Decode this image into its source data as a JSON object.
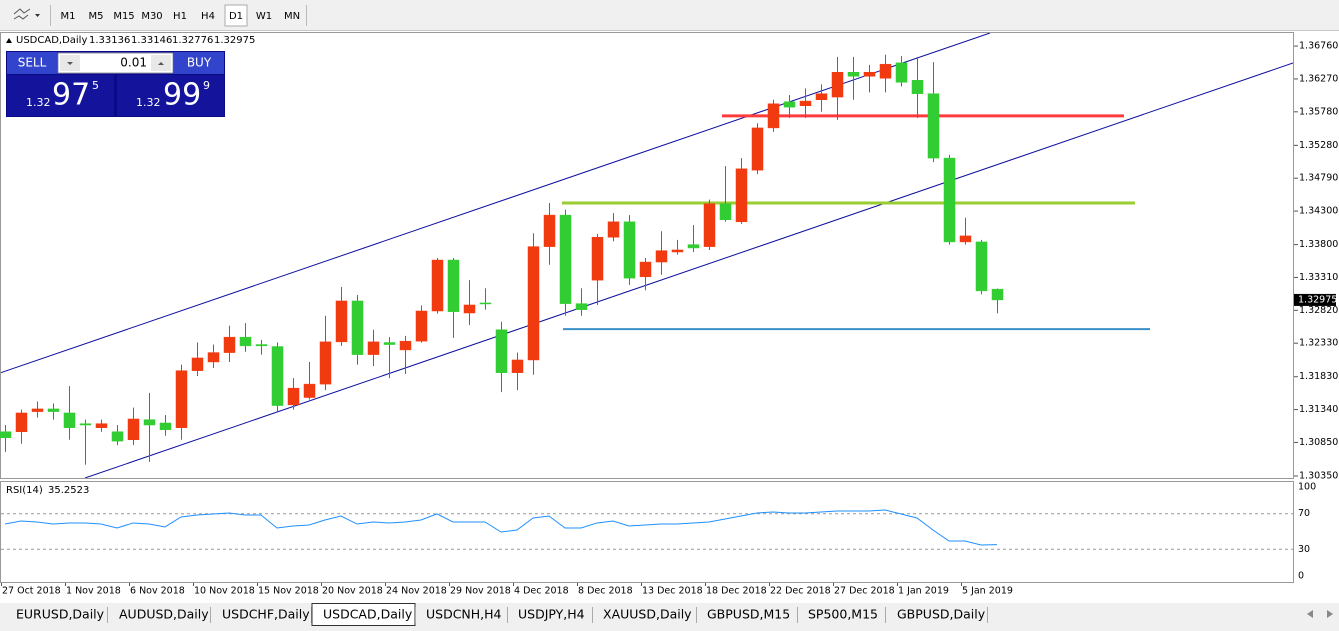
{
  "toolbar": {
    "timeframes": [
      "M1",
      "M5",
      "M15",
      "M30",
      "H1",
      "H4",
      "D1",
      "W1",
      "MN"
    ],
    "active": "D1"
  },
  "trade_panel": {
    "sell": "SELL",
    "buy": "BUY",
    "lot": 0.01,
    "bid": {
      "prefix": "1.32",
      "big": "97",
      "small": "5"
    },
    "ask": {
      "prefix": "1.32",
      "big": "99",
      "small": "9"
    }
  },
  "tabs": {
    "items": [
      "EURUSD,Daily",
      "AUDUSD,Daily",
      "USDCHF,Daily",
      "USDCAD,Daily",
      "USDCNH,H4",
      "USDJPY,H4",
      "XAUUSD,Daily",
      "GBPUSD,M15",
      "SP500,M15",
      "GBPUSD,Daily"
    ],
    "active": "USDCAD,Daily"
  },
  "chart_data": [
    {
      "type": "candlestick",
      "title": "USDCAD,Daily",
      "categories": [
        "27 Oct 2018",
        null,
        null,
        null,
        "1 Nov 2018",
        null,
        null,
        null,
        "6 Nov 2018",
        null,
        null,
        null,
        "10 Nov 2018",
        null,
        null,
        null,
        "15 Nov 2018",
        null,
        null,
        null,
        "20 Nov 2018",
        null,
        null,
        null,
        "24 Nov 2018",
        null,
        null,
        null,
        "29 Nov 2018",
        null,
        null,
        null,
        "4 Dec 2018",
        null,
        null,
        null,
        "8 Dec 2018",
        null,
        null,
        null,
        "13 Dec 2018",
        null,
        null,
        null,
        "18 Dec 2018",
        null,
        null,
        null,
        "22 Dec 2018",
        null,
        null,
        null,
        "27 Dec 2018",
        null,
        null,
        null,
        "1 Jan 2019",
        null,
        null,
        null,
        "5 Jan 2019",
        null,
        null
      ],
      "open": [
        1.3101,
        1.3101,
        1.3131,
        1.3135,
        1.3129,
        1.3113,
        1.3107,
        1.3101,
        1.3089,
        1.3119,
        1.3114,
        1.3107,
        1.3192,
        1.3205,
        1.3219,
        1.3242,
        1.3231,
        1.3228,
        1.3141,
        1.3152,
        1.3172,
        1.3235,
        1.3296,
        1.3216,
        1.3234,
        1.3223,
        1.3236,
        1.3281,
        1.3357,
        1.3278,
        1.3293,
        1.3253,
        1.3189,
        1.3208,
        1.3377,
        1.3424,
        1.3292,
        1.3327,
        1.3391,
        1.3414,
        1.3332,
        1.3354,
        1.3369,
        1.338,
        1.3377,
        1.3441,
        1.3414,
        1.3491,
        1.3554,
        1.3593,
        1.3587,
        1.3596,
        1.36,
        1.3637,
        1.3631,
        1.3628,
        1.3651,
        1.3625,
        1.3605,
        1.3509,
        1.3384,
        1.3384,
        1.33136
      ],
      "high": [
        1.3111,
        1.3134,
        1.3146,
        1.3143,
        1.3169,
        1.3119,
        1.3119,
        1.3111,
        1.3137,
        1.3159,
        1.3126,
        1.3201,
        1.3234,
        1.3231,
        1.3259,
        1.3263,
        1.3238,
        1.3234,
        1.3181,
        1.3205,
        1.3274,
        1.3317,
        1.3305,
        1.3253,
        1.3242,
        1.3244,
        1.3289,
        1.336,
        1.336,
        1.3327,
        1.3315,
        1.3265,
        1.3219,
        1.3397,
        1.3442,
        1.3432,
        1.3315,
        1.3396,
        1.3427,
        1.3424,
        1.336,
        1.34,
        1.3387,
        1.3409,
        1.3447,
        1.3497,
        1.3509,
        1.3561,
        1.3596,
        1.3603,
        1.3613,
        1.3619,
        1.366,
        1.366,
        1.3648,
        1.3663,
        1.3661,
        1.366,
        1.3652,
        1.3514,
        1.342,
        1.3387,
        1.33146
      ],
      "low": [
        1.3071,
        1.3083,
        1.3122,
        1.3119,
        1.3089,
        1.3052,
        1.3101,
        1.3081,
        1.3081,
        1.3056,
        1.3095,
        1.3089,
        1.3184,
        1.3196,
        1.3205,
        1.322,
        1.3216,
        1.3131,
        1.3134,
        1.3149,
        1.3163,
        1.3229,
        1.3201,
        1.3199,
        1.3181,
        1.3187,
        1.3234,
        1.3277,
        1.3241,
        1.326,
        1.3283,
        1.316,
        1.3163,
        1.3186,
        1.335,
        1.3274,
        1.3274,
        1.329,
        1.3385,
        1.332,
        1.3312,
        1.3335,
        1.3365,
        1.3369,
        1.3372,
        1.3414,
        1.3411,
        1.3485,
        1.3548,
        1.3569,
        1.3569,
        1.3578,
        1.3566,
        1.3596,
        1.3607,
        1.3607,
        1.3616,
        1.3569,
        1.3503,
        1.338,
        1.338,
        1.3306,
        1.32776
      ],
      "close": [
        1.3092,
        1.3129,
        1.3135,
        1.3131,
        1.3107,
        1.3111,
        1.3113,
        1.3087,
        1.312,
        1.3111,
        1.3104,
        1.3192,
        1.3211,
        1.3219,
        1.3242,
        1.3229,
        1.3229,
        1.314,
        1.3166,
        1.3172,
        1.3235,
        1.3296,
        1.3216,
        1.3235,
        1.3231,
        1.3236,
        1.3281,
        1.3357,
        1.328,
        1.329,
        1.3292,
        1.3189,
        1.3208,
        1.3377,
        1.3424,
        1.3292,
        1.3283,
        1.3391,
        1.3414,
        1.333,
        1.3354,
        1.3371,
        1.3372,
        1.3375,
        1.3441,
        1.3417,
        1.3493,
        1.3554,
        1.359,
        1.3585,
        1.3594,
        1.3605,
        1.3637,
        1.3631,
        1.3637,
        1.3649,
        1.3622,
        1.3605,
        1.3509,
        1.3384,
        1.3393,
        1.3311,
        1.32975
      ],
      "up_color": "#f23a10",
      "down_color": "#32cd32",
      "ylim": [
        1.3032,
        1.3697
      ],
      "yticks": [
        {
          "value": 1.3676,
          "label": "1.36760"
        },
        {
          "value": 1.3627,
          "label": "1.36270"
        },
        {
          "value": 1.3578,
          "label": "1.35780"
        },
        {
          "value": 1.3528,
          "label": "1.35280"
        },
        {
          "value": 1.3479,
          "label": "1.34790"
        },
        {
          "value": 1.343,
          "label": "1.34300"
        },
        {
          "value": 1.338,
          "label": "1.33800"
        },
        {
          "value": 1.3331,
          "label": "1.33310"
        },
        {
          "value": 1.3282,
          "label": "1.32820"
        },
        {
          "value": 1.3233,
          "label": "1.32330"
        },
        {
          "value": 1.3183,
          "label": "1.31830"
        },
        {
          "value": 1.3134,
          "label": "1.31340"
        },
        {
          "value": 1.3085,
          "label": "1.30850"
        },
        {
          "value": 1.3035,
          "label": "1.30350"
        }
      ],
      "levels": [
        {
          "value": 1.3572,
          "color": "#ff3b3b"
        },
        {
          "value": 1.3442,
          "color": "#9acd32"
        },
        {
          "value": 1.3254,
          "color": "#3a8fc9"
        }
      ]
    },
    {
      "type": "line",
      "title": "RSI(14)",
      "color": "#1e90ff",
      "values": [
        58.4,
        61.8,
        60.7,
        58.4,
        59.6,
        59.6,
        58.4,
        53.9,
        59.6,
        58.4,
        55.1,
        66.3,
        68.5,
        69.7,
        70.8,
        68.5,
        68.5,
        53.9,
        56.2,
        57.3,
        62.9,
        67.4,
        58.4,
        60.7,
        59.6,
        60.7,
        62.9,
        69.7,
        60.7,
        60.7,
        60.7,
        49.4,
        51.7,
        65.2,
        67.4,
        53.9,
        53.9,
        59.6,
        61.8,
        56.2,
        57.3,
        58.4,
        58.4,
        59.6,
        60.7,
        64.0,
        67.4,
        70.8,
        71.9,
        70.8,
        70.8,
        71.9,
        73.0,
        73.0,
        73.0,
        74.2,
        69.7,
        65.2,
        51.7,
        39.3,
        39.3,
        34.8,
        35.2523
      ],
      "ylim": [
        0,
        100
      ],
      "yticks": [
        0,
        30,
        70,
        100
      ]
    }
  ]
}
